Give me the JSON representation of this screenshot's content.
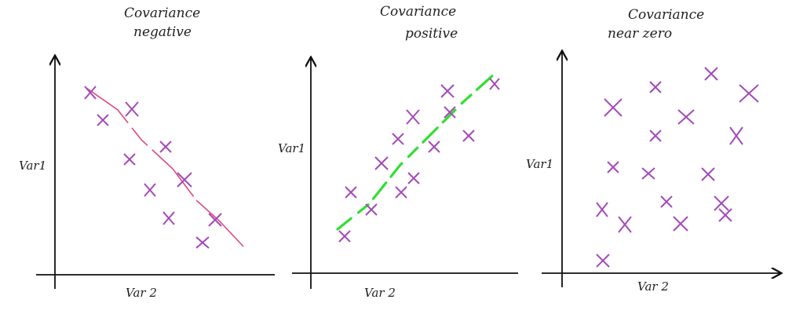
{
  "panels": [
    {
      "title_line1": "Covariance",
      "title_line2": "negative",
      "y_label": "Var1",
      "x_label": "Var 2",
      "trend": "negative"
    },
    {
      "title_line1": "Covariance",
      "title_line2": "positive",
      "y_label": "Var1",
      "x_label": "Var 2",
      "trend": "positive"
    },
    {
      "title_line1": "Covariance",
      "title_line2": "near zero",
      "y_label": "Var1",
      "x_label": "Var 2",
      "trend": "none"
    }
  ],
  "colors": {
    "axis": "#111111",
    "marker": "#a34ab8",
    "negative_trend_line": "#e04a7a",
    "positive_trend_line": "#33dd33"
  },
  "marker_icon": "x-cross-icon"
}
